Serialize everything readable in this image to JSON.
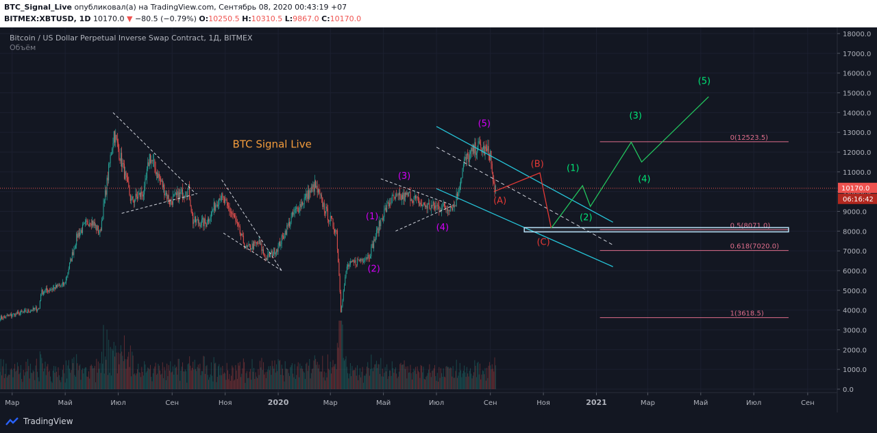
{
  "header": {
    "author": "BTC_Signal_Live",
    "published_text": " опубликовал(а) на TradingView.com, Сентябрь 08, 2020 00:43:19 +07",
    "symbol": "BITMEX:XBTUSD, 1D",
    "last": "10170.0",
    "change": "−80.5 (−0.79%)",
    "o_label": "O:",
    "o_value": "10250.5",
    "h_label": "H:",
    "h_value": "10310.5",
    "l_label": "L:",
    "l_value": "9867.0",
    "c_label": "C:",
    "c_value": "10170.0"
  },
  "legend": {
    "title": "Bitcoin / US Dollar Perpetual Inverse Swap Contract, 1Д, BITMEX",
    "volume": "Объём"
  },
  "brand": "TradingView",
  "colors": {
    "background": "#131722",
    "up": "#26a69a",
    "down": "#ef5350",
    "wave_purple": "#d500f9",
    "wave_red": "#e53935",
    "wave_green": "#00e676",
    "channel": "#26c6da",
    "fib": "#e06e8c",
    "title": "#f39c3c"
  },
  "chart_data": {
    "type": "candlestick",
    "price_axis": {
      "ticks": [
        "18000.0",
        "17000.0",
        "16000.0",
        "15000.0",
        "14000.0",
        "13000.0",
        "12000.0",
        "11000.0",
        "10000.0",
        "9000.0",
        "8000.0",
        "7000.0",
        "6000.0",
        "5000.0",
        "4000.0",
        "3000.0",
        "2000.0",
        "1000.0",
        "0.0"
      ],
      "range": [
        0,
        18000
      ]
    },
    "time_axis": {
      "ticks": [
        "Мар",
        "Май",
        "Июл",
        "Сен",
        "Ноя",
        "2020",
        "Мар",
        "Май",
        "Июл",
        "Сен",
        "Ноя",
        "2021",
        "Мар",
        "Май",
        "Июл",
        "Сен"
      ],
      "range": [
        "2019-02-15",
        "2021-10-05"
      ]
    },
    "current_price_label": "10170.0",
    "countdown_label": "06:16:42",
    "annotation_title": "BTC Signal Live",
    "price_path": [
      [
        "2019-02-15",
        3600
      ],
      [
        "2019-03-15",
        3900
      ],
      [
        "2019-04-01",
        4100
      ],
      [
        "2019-04-03",
        4900
      ],
      [
        "2019-04-30",
        5300
      ],
      [
        "2019-05-15",
        7800
      ],
      [
        "2019-05-30",
        8600
      ],
      [
        "2019-06-10",
        7900
      ],
      [
        "2019-06-26",
        13000
      ],
      [
        "2019-07-05",
        11500
      ],
      [
        "2019-07-16",
        9500
      ],
      [
        "2019-07-31",
        10000
      ],
      [
        "2019-08-06",
        11800
      ],
      [
        "2019-08-29",
        9500
      ],
      [
        "2019-09-20",
        10100
      ],
      [
        "2019-09-25",
        8500
      ],
      [
        "2019-10-10",
        8400
      ],
      [
        "2019-10-26",
        9800
      ],
      [
        "2019-11-10",
        8800
      ],
      [
        "2019-11-25",
        7100
      ],
      [
        "2019-12-10",
        7400
      ],
      [
        "2019-12-18",
        6600
      ],
      [
        "2020-01-01",
        7200
      ],
      [
        "2020-01-19",
        8900
      ],
      [
        "2020-02-12",
        10300
      ],
      [
        "2020-02-28",
        8700
      ],
      [
        "2020-03-08",
        8000
      ],
      [
        "2020-03-12",
        5000
      ],
      [
        "2020-03-13",
        4000
      ],
      [
        "2020-03-20",
        6200
      ],
      [
        "2020-04-15",
        6800
      ],
      [
        "2020-04-30",
        8800
      ],
      [
        "2020-05-10",
        9600
      ],
      [
        "2020-06-01",
        9800
      ],
      [
        "2020-06-15",
        9300
      ],
      [
        "2020-07-10",
        9200
      ],
      [
        "2020-07-22",
        9300
      ],
      [
        "2020-08-02",
        11500
      ],
      [
        "2020-08-17",
        12300
      ],
      [
        "2020-09-01",
        11900
      ],
      [
        "2020-09-04",
        10400
      ],
      [
        "2020-09-07",
        10170
      ]
    ],
    "volume_scale_max": 3000,
    "wave_labels": [
      {
        "text": "(1)",
        "date": "2020-04-18",
        "price": 8600,
        "color": "purple"
      },
      {
        "text": "(2)",
        "date": "2020-04-20",
        "price": 5950,
        "color": "purple"
      },
      {
        "text": "(3)",
        "date": "2020-05-25",
        "price": 10650,
        "color": "purple"
      },
      {
        "text": "(4)",
        "date": "2020-07-08",
        "price": 8050,
        "color": "purple"
      },
      {
        "text": "(5)",
        "date": "2020-08-25",
        "price": 13300,
        "color": "purple"
      },
      {
        "text": "(A)",
        "date": "2020-09-12",
        "price": 9400,
        "color": "red"
      },
      {
        "text": "(B)",
        "date": "2020-10-25",
        "price": 11250,
        "color": "red"
      },
      {
        "text": "(C)",
        "date": "2020-11-01",
        "price": 7300,
        "color": "red"
      },
      {
        "text": "(1)",
        "date": "2020-12-05",
        "price": 11050,
        "color": "green"
      },
      {
        "text": "(2)",
        "date": "2020-12-20",
        "price": 8550,
        "color": "green"
      },
      {
        "text": "(3)",
        "date": "2021-02-15",
        "price": 13700,
        "color": "green"
      },
      {
        "text": "(4)",
        "date": "2021-02-25",
        "price": 10500,
        "color": "green"
      },
      {
        "text": "(5)",
        "date": "2021-05-05",
        "price": 15450,
        "color": "green"
      }
    ],
    "wave_paths": {
      "corrective": [
        [
          "2020-09-05",
          10000
        ],
        [
          "2020-10-28",
          10950
        ],
        [
          "2020-11-10",
          8150
        ]
      ],
      "impulse": [
        [
          "2020-11-10",
          8150
        ],
        [
          "2020-12-16",
          10300
        ],
        [
          "2020-12-25",
          9250
        ],
        [
          "2021-02-10",
          12500
        ],
        [
          "2021-02-22",
          11500
        ],
        [
          "2021-05-10",
          14800
        ]
      ]
    },
    "channel": {
      "upper": [
        [
          "2020-07-01",
          13300
        ],
        [
          "2021-01-20",
          8450
        ]
      ],
      "middle": [
        [
          "2020-07-01",
          12250
        ],
        [
          "2021-01-20",
          7300
        ]
      ],
      "lower": [
        [
          "2020-07-01",
          10150
        ],
        [
          "2021-01-20",
          6200
        ]
      ]
    },
    "triangles": [
      [
        [
          "2019-06-25",
          14000
        ],
        [
          "2019-09-28",
          9900
        ]
      ],
      [
        [
          "2019-07-05",
          8900
        ],
        [
          "2019-09-30",
          9900
        ]
      ],
      [
        [
          "2019-10-28",
          10600
        ],
        [
          "2020-01-05",
          6000
        ]
      ],
      [
        [
          "2019-10-30",
          7900
        ],
        [
          "2020-01-05",
          6000
        ]
      ],
      [
        [
          "2020-04-28",
          10650
        ],
        [
          "2020-07-20",
          9300
        ]
      ],
      [
        [
          "2020-05-15",
          8000
        ],
        [
          "2020-07-20",
          9300
        ]
      ]
    ],
    "fib_levels": [
      {
        "label": "0(12523.5)",
        "price": 12523.5
      },
      {
        "label": "0.5(8071.0)",
        "price": 8071.0
      },
      {
        "label": "0.618(7020.0)",
        "price": 7020.0
      },
      {
        "label": "1(3618.5)",
        "price": 3618.5
      }
    ],
    "fib_range": [
      "2021-01-05",
      "2021-08-10"
    ],
    "support_zone": {
      "from": "2020-10-10",
      "to": "2021-08-10",
      "low": 7960,
      "high": 8180
    }
  }
}
